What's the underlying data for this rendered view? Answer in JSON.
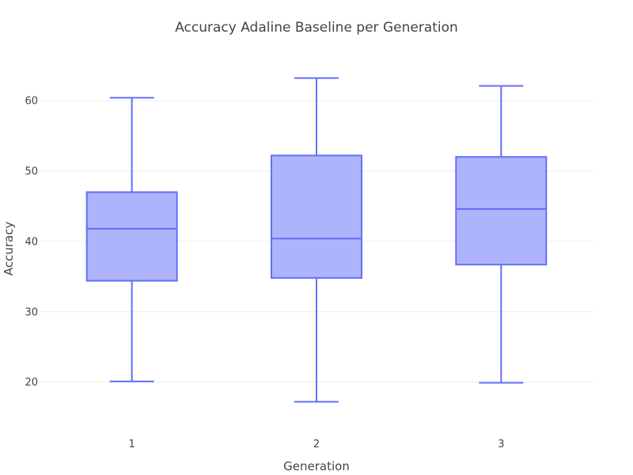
{
  "chart_data": {
    "type": "box",
    "title": "Accuracy Adaline Baseline per Generation",
    "xlabel": "Generation",
    "ylabel": "Accuracy",
    "categories": [
      "1",
      "2",
      "3"
    ],
    "ylim": [
      14,
      68
    ],
    "yticks": [
      20,
      30,
      40,
      50,
      60
    ],
    "grid": true,
    "boxes": [
      {
        "category": "1",
        "min": 20.1,
        "q1": 34.4,
        "median": 41.8,
        "q3": 47.0,
        "max": 60.4
      },
      {
        "category": "2",
        "min": 17.2,
        "q1": 34.8,
        "median": 40.4,
        "q3": 52.2,
        "max": 63.2
      },
      {
        "category": "3",
        "min": 19.9,
        "q1": 36.7,
        "median": 44.6,
        "q3": 52.0,
        "max": 62.1
      }
    ],
    "colors": {
      "line": "#636efa",
      "fill": "#aab0fb"
    }
  }
}
